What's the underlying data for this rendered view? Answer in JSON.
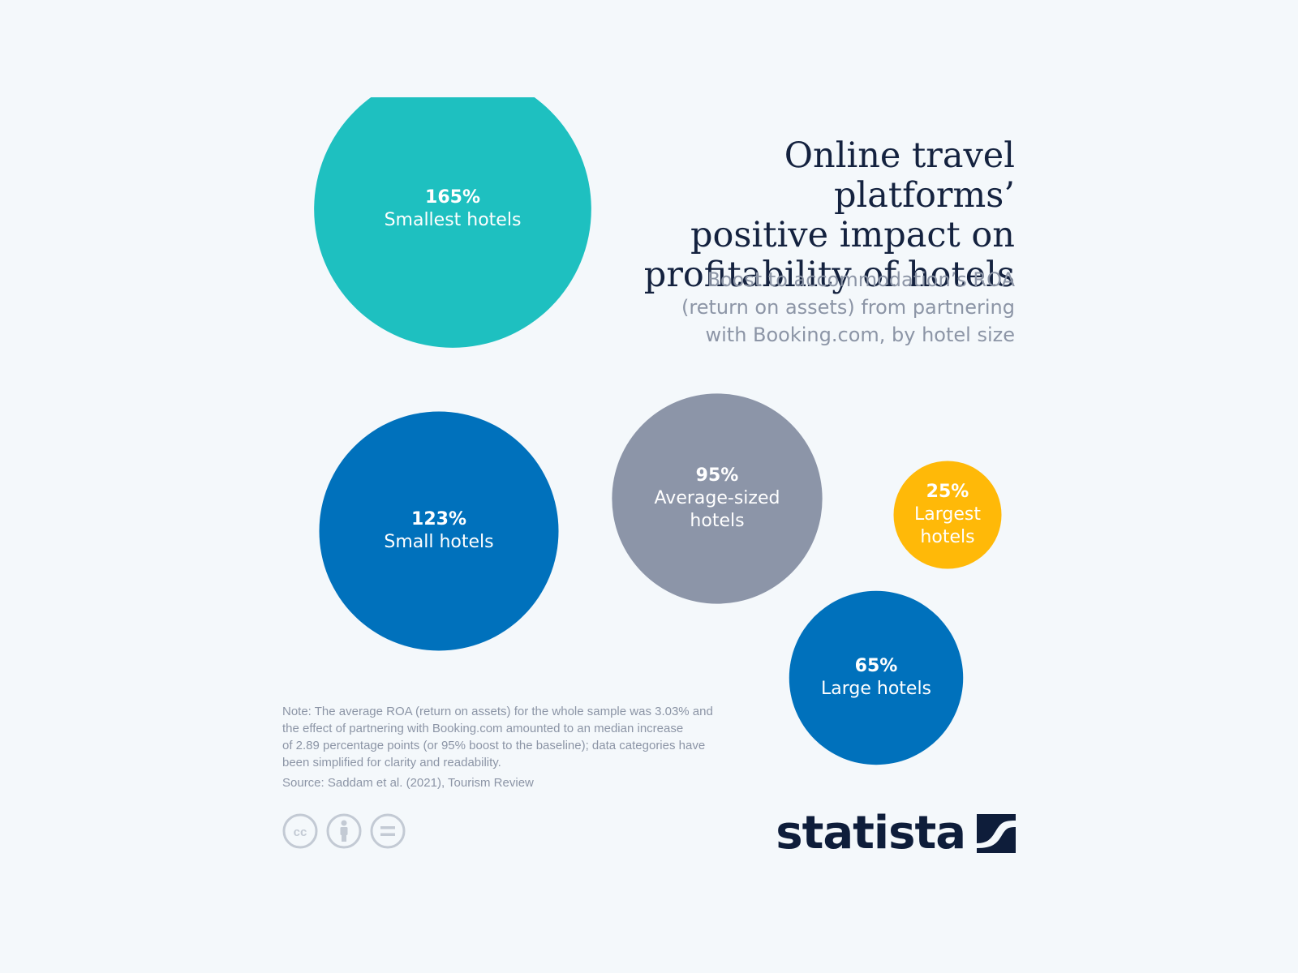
{
  "header": {
    "title_lines": [
      "Online travel platforms’",
      "positive impact on",
      "profitability of hotels"
    ],
    "subtitle_lines": [
      "Boost to accommodation’s ROA",
      "(return on assets) from partnering",
      "with Booking.com, by hotel size"
    ]
  },
  "chart_data": {
    "type": "bubble",
    "title": "Online travel platforms’ positive impact on profitability of hotels",
    "subtitle": "Boost to accommodation’s ROA (return on assets) from partnering with Booking.com, by hotel size",
    "unit": "%",
    "categories": [
      "Smallest hotels",
      "Small hotels",
      "Average-sized hotels",
      "Largest hotels",
      "Large hotels"
    ],
    "values": [
      165,
      123,
      95,
      25,
      65
    ],
    "value_labels": [
      "165%",
      "123%",
      "95%",
      "25%",
      "65%"
    ],
    "label_lines": [
      [
        "Smallest hotels"
      ],
      [
        "Small hotels"
      ],
      [
        "Average-sized",
        "hotels"
      ],
      [
        "Largest",
        "hotels"
      ],
      [
        "Large hotels"
      ]
    ],
    "colors": [
      "#1ec0c0",
      "#0071bc",
      "#8c95a8",
      "#ffb908",
      "#0071bc"
    ]
  },
  "footer": {
    "note_lines": [
      "Note: The average ROA (return on assets) for the whole sample was 3.03% and",
      "the effect of partnering with Booking.com amounted to an median increase",
      "of 2.89 percentage points (or 95% boost to the baseline); data categories have",
      "been simplified for clarity and readability."
    ],
    "source": "Source: Saddam et al. (2021), Tourism Review",
    "license_icons": [
      "cc-icon",
      "attribution-icon",
      "no-derivatives-icon"
    ],
    "brand": "statista"
  },
  "colors": {
    "background": "#f4f8fb",
    "title": "#14223f",
    "muted_text": "#8c95a6",
    "brand": "#0e1d3a"
  }
}
